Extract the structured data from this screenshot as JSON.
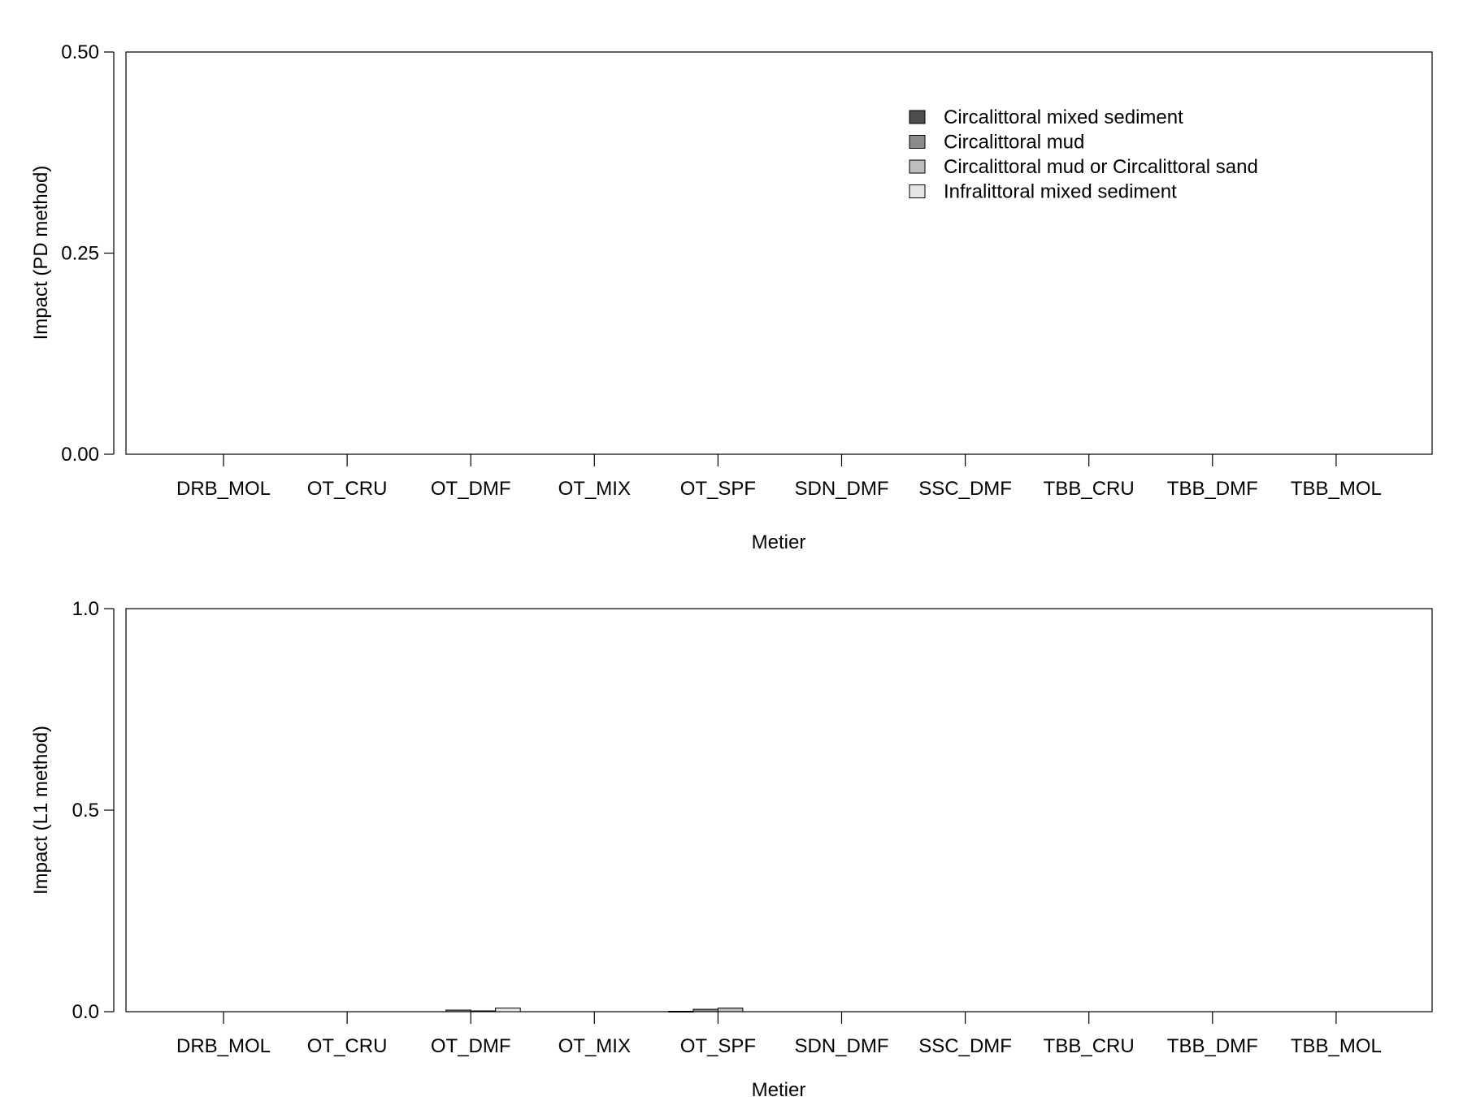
{
  "chart_data": [
    {
      "type": "bar",
      "ylabel": "Impact (PD method)",
      "xlabel": "Metier",
      "ylim": [
        0,
        0.5
      ],
      "yticks": [
        "0.00",
        "0.25",
        "0.50"
      ],
      "grid": false,
      "legend": "top-right",
      "categories": [
        "DRB_MOL",
        "OT_CRU",
        "OT_DMF",
        "OT_MIX",
        "OT_SPF",
        "SDN_DMF",
        "SSC_DMF",
        "TBB_CRU",
        "TBB_DMF",
        "TBB_MOL"
      ],
      "series": [
        {
          "name": "Circalittoral mixed sediment",
          "color": "#4d4d4d",
          "values": [
            0,
            0,
            0,
            0,
            0,
            0,
            0,
            0,
            0,
            0
          ]
        },
        {
          "name": "Circalittoral mud",
          "color": "#8c8c8c",
          "values": [
            0,
            0,
            0,
            0,
            0,
            0,
            0,
            0,
            0,
            0
          ]
        },
        {
          "name": "Circalittoral mud or Circalittoral sand",
          "color": "#bdbdbd",
          "values": [
            0,
            0,
            0,
            0,
            0,
            0,
            0,
            0,
            0,
            0
          ]
        },
        {
          "name": "Infralittoral mixed sediment",
          "color": "#e6e6e6",
          "values": [
            0,
            0,
            0,
            0,
            0,
            0,
            0,
            0,
            0,
            0
          ]
        }
      ]
    },
    {
      "type": "bar",
      "ylabel": "Impact (L1 method)",
      "xlabel": "Metier",
      "ylim": [
        0,
        1.0
      ],
      "yticks": [
        "0.0",
        "0.5",
        "1.0"
      ],
      "grid": false,
      "categories": [
        "DRB_MOL",
        "OT_CRU",
        "OT_DMF",
        "OT_MIX",
        "OT_SPF",
        "SDN_DMF",
        "SSC_DMF",
        "TBB_CRU",
        "TBB_DMF",
        "TBB_MOL"
      ],
      "series": [
        {
          "name": "Circalittoral mixed sediment",
          "color": "#4d4d4d",
          "values": [
            0,
            0,
            0,
            0,
            0.001,
            0,
            0,
            0,
            0,
            0
          ]
        },
        {
          "name": "Circalittoral mud",
          "color": "#8c8c8c",
          "values": [
            0,
            0,
            0.004,
            0,
            0.006,
            0,
            0,
            0,
            0,
            0
          ]
        },
        {
          "name": "Circalittoral mud or Circalittoral sand",
          "color": "#bdbdbd",
          "values": [
            0,
            0,
            0.002,
            0,
            0.009,
            0,
            0,
            0,
            0,
            0
          ]
        },
        {
          "name": "Infralittoral mixed sediment",
          "color": "#e6e6e6",
          "values": [
            0,
            0,
            0.009,
            0,
            0,
            0,
            0,
            0,
            0,
            0
          ]
        }
      ]
    }
  ]
}
